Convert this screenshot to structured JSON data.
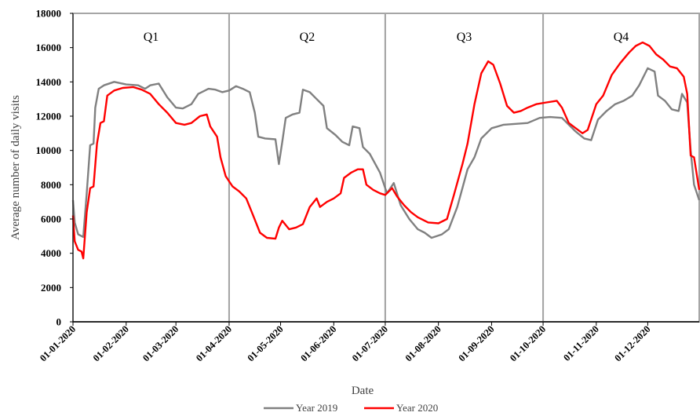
{
  "chart_data": {
    "type": "line",
    "xlabel": "Date",
    "ylabel": "Average number of daily visits",
    "ylim": [
      0,
      18000
    ],
    "xlim": [
      "01-01-2020",
      "31-12-2020"
    ],
    "grid": false,
    "legend_position": "bottom",
    "y_ticks": [
      "0",
      "2000",
      "4000",
      "6000",
      "8000",
      "10000",
      "12000",
      "14000",
      "16000",
      "18000"
    ],
    "x_ticks": [
      "01-01-2020",
      "01-02-2020",
      "01-03-2020",
      "01-04-2020",
      "01-05-2020",
      "01-06-2020",
      "01-07-2020",
      "01-08-2020",
      "01-09-2020",
      "01-10-2020",
      "01-11-2020",
      "01-12-2020"
    ],
    "regions": [
      {
        "label": "Q1",
        "start": "01-01-2020",
        "end": "01-04-2020"
      },
      {
        "label": "Q2",
        "start": "01-04-2020",
        "end": "01-07-2020"
      },
      {
        "label": "Q3",
        "start": "01-07-2020",
        "end": "01-10-2020"
      },
      {
        "label": "Q4",
        "start": "01-10-2020",
        "end": "31-12-2020"
      }
    ],
    "series": [
      {
        "name": "Year 2019",
        "color": "#808080",
        "points": [
          [
            "01-01-2020",
            7100
          ],
          [
            "02-01-2020",
            5800
          ],
          [
            "04-01-2020",
            5100
          ],
          [
            "07-01-2020",
            4950
          ],
          [
            "09-01-2020",
            7500
          ],
          [
            "11-01-2020",
            10300
          ],
          [
            "13-01-2020",
            10400
          ],
          [
            "14-01-2020",
            12500
          ],
          [
            "16-01-2020",
            13600
          ],
          [
            "19-01-2020",
            13800
          ],
          [
            "25-01-2020",
            14000
          ],
          [
            "01-02-2020",
            13850
          ],
          [
            "08-02-2020",
            13800
          ],
          [
            "12-02-2020",
            13600
          ],
          [
            "15-02-2020",
            13800
          ],
          [
            "20-02-2020",
            13900
          ],
          [
            "25-02-2020",
            13100
          ],
          [
            "01-03-2020",
            12500
          ],
          [
            "05-03-2020",
            12450
          ],
          [
            "10-03-2020",
            12700
          ],
          [
            "14-03-2020",
            13300
          ],
          [
            "20-03-2020",
            13600
          ],
          [
            "24-03-2020",
            13550
          ],
          [
            "28-03-2020",
            13400
          ],
          [
            "01-04-2020",
            13500
          ],
          [
            "05-04-2020",
            13750
          ],
          [
            "09-04-2020",
            13600
          ],
          [
            "13-04-2020",
            13400
          ],
          [
            "16-04-2020",
            12200
          ],
          [
            "18-04-2020",
            10800
          ],
          [
            "22-04-2020",
            10700
          ],
          [
            "28-04-2020",
            10650
          ],
          [
            "30-04-2020",
            9200
          ],
          [
            "02-05-2020",
            10500
          ],
          [
            "04-05-2020",
            11900
          ],
          [
            "08-05-2020",
            12100
          ],
          [
            "12-05-2020",
            12200
          ],
          [
            "14-05-2020",
            13550
          ],
          [
            "18-05-2020",
            13400
          ],
          [
            "22-05-2020",
            13000
          ],
          [
            "26-05-2020",
            12600
          ],
          [
            "28-05-2020",
            11300
          ],
          [
            "02-06-2020",
            10900
          ],
          [
            "06-06-2020",
            10500
          ],
          [
            "10-06-2020",
            10300
          ],
          [
            "12-06-2020",
            11400
          ],
          [
            "16-06-2020",
            11300
          ],
          [
            "18-06-2020",
            10200
          ],
          [
            "22-06-2020",
            9800
          ],
          [
            "28-06-2020",
            8700
          ],
          [
            "02-07-2020",
            7500
          ],
          [
            "06-07-2020",
            8100
          ],
          [
            "10-07-2020",
            6800
          ],
          [
            "15-07-2020",
            6000
          ],
          [
            "20-07-2020",
            5400
          ],
          [
            "24-07-2020",
            5200
          ],
          [
            "28-07-2020",
            4900
          ],
          [
            "03-08-2020",
            5100
          ],
          [
            "07-08-2020",
            5400
          ],
          [
            "12-08-2020",
            6700
          ],
          [
            "18-08-2020",
            8900
          ],
          [
            "22-08-2020",
            9600
          ],
          [
            "26-08-2020",
            10700
          ],
          [
            "01-09-2020",
            11300
          ],
          [
            "08-09-2020",
            11500
          ],
          [
            "15-09-2020",
            11550
          ],
          [
            "22-09-2020",
            11600
          ],
          [
            "29-09-2020",
            11900
          ],
          [
            "05-10-2020",
            11950
          ],
          [
            "12-10-2020",
            11900
          ],
          [
            "16-10-2020",
            11500
          ],
          [
            "20-10-2020",
            11100
          ],
          [
            "25-10-2020",
            10700
          ],
          [
            "29-10-2020",
            10600
          ],
          [
            "02-11-2020",
            11800
          ],
          [
            "07-11-2020",
            12300
          ],
          [
            "12-11-2020",
            12700
          ],
          [
            "17-11-2020",
            12900
          ],
          [
            "22-11-2020",
            13200
          ],
          [
            "26-11-2020",
            13800
          ],
          [
            "01-12-2020",
            14800
          ],
          [
            "05-12-2020",
            14600
          ],
          [
            "07-12-2020",
            13200
          ],
          [
            "11-12-2020",
            12900
          ],
          [
            "15-12-2020",
            12400
          ],
          [
            "19-12-2020",
            12300
          ],
          [
            "21-12-2020",
            13300
          ],
          [
            "24-12-2020",
            12800
          ],
          [
            "26-12-2020",
            10000
          ],
          [
            "28-12-2020",
            8000
          ],
          [
            "31-12-2020",
            7100
          ]
        ]
      },
      {
        "name": "Year 2020",
        "color": "#ff0000",
        "points": [
          [
            "01-01-2020",
            6200
          ],
          [
            "02-01-2020",
            4700
          ],
          [
            "04-01-2020",
            4200
          ],
          [
            "06-01-2020",
            4100
          ],
          [
            "07-01-2020",
            3700
          ],
          [
            "09-01-2020",
            6400
          ],
          [
            "11-01-2020",
            7800
          ],
          [
            "13-01-2020",
            7900
          ],
          [
            "15-01-2020",
            10400
          ],
          [
            "17-01-2020",
            11600
          ],
          [
            "19-01-2020",
            11700
          ],
          [
            "21-01-2020",
            13200
          ],
          [
            "25-01-2020",
            13500
          ],
          [
            "30-01-2020",
            13650
          ],
          [
            "05-02-2020",
            13700
          ],
          [
            "10-02-2020",
            13550
          ],
          [
            "15-02-2020",
            13300
          ],
          [
            "20-02-2020",
            12700
          ],
          [
            "25-02-2020",
            12200
          ],
          [
            "01-03-2020",
            11600
          ],
          [
            "06-03-2020",
            11500
          ],
          [
            "10-03-2020",
            11600
          ],
          [
            "15-03-2020",
            12000
          ],
          [
            "19-03-2020",
            12100
          ],
          [
            "21-03-2020",
            11400
          ],
          [
            "25-03-2020",
            10800
          ],
          [
            "27-03-2020",
            9600
          ],
          [
            "30-03-2020",
            8500
          ],
          [
            "03-04-2020",
            7900
          ],
          [
            "07-04-2020",
            7600
          ],
          [
            "11-04-2020",
            7200
          ],
          [
            "15-04-2020",
            6200
          ],
          [
            "19-04-2020",
            5200
          ],
          [
            "23-04-2020",
            4900
          ],
          [
            "28-04-2020",
            4850
          ],
          [
            "30-04-2020",
            5500
          ],
          [
            "02-05-2020",
            5900
          ],
          [
            "06-05-2020",
            5400
          ],
          [
            "10-05-2020",
            5500
          ],
          [
            "14-05-2020",
            5700
          ],
          [
            "18-05-2020",
            6700
          ],
          [
            "22-05-2020",
            7200
          ],
          [
            "24-05-2020",
            6700
          ],
          [
            "28-05-2020",
            7000
          ],
          [
            "01-06-2020",
            7200
          ],
          [
            "05-06-2020",
            7500
          ],
          [
            "07-06-2020",
            8400
          ],
          [
            "11-06-2020",
            8700
          ],
          [
            "15-06-2020",
            8900
          ],
          [
            "18-06-2020",
            8900
          ],
          [
            "20-06-2020",
            8000
          ],
          [
            "24-06-2020",
            7700
          ],
          [
            "28-06-2020",
            7500
          ],
          [
            "01-07-2020",
            7400
          ],
          [
            "05-07-2020",
            7800
          ],
          [
            "08-07-2020",
            7300
          ],
          [
            "12-07-2020",
            6800
          ],
          [
            "16-07-2020",
            6400
          ],
          [
            "20-07-2020",
            6100
          ],
          [
            "26-07-2020",
            5800
          ],
          [
            "01-08-2020",
            5750
          ],
          [
            "06-08-2020",
            6000
          ],
          [
            "10-08-2020",
            7400
          ],
          [
            "15-08-2020",
            9200
          ],
          [
            "18-08-2020",
            10400
          ],
          [
            "22-08-2020",
            12700
          ],
          [
            "26-08-2020",
            14500
          ],
          [
            "30-08-2020",
            15200
          ],
          [
            "02-09-2020",
            15000
          ],
          [
            "06-09-2020",
            13900
          ],
          [
            "10-09-2020",
            12600
          ],
          [
            "14-09-2020",
            12200
          ],
          [
            "18-09-2020",
            12300
          ],
          [
            "22-09-2020",
            12500
          ],
          [
            "27-09-2020",
            12700
          ],
          [
            "03-10-2020",
            12800
          ],
          [
            "09-10-2020",
            12900
          ],
          [
            "12-10-2020",
            12500
          ],
          [
            "16-10-2020",
            11600
          ],
          [
            "20-10-2020",
            11300
          ],
          [
            "24-10-2020",
            11000
          ],
          [
            "27-10-2020",
            11200
          ],
          [
            "01-11-2020",
            12700
          ],
          [
            "05-11-2020",
            13200
          ],
          [
            "10-11-2020",
            14400
          ],
          [
            "15-11-2020",
            15100
          ],
          [
            "20-11-2020",
            15700
          ],
          [
            "24-11-2020",
            16100
          ],
          [
            "28-11-2020",
            16300
          ],
          [
            "02-12-2020",
            16100
          ],
          [
            "06-12-2020",
            15600
          ],
          [
            "10-12-2020",
            15300
          ],
          [
            "14-12-2020",
            14900
          ],
          [
            "18-12-2020",
            14800
          ],
          [
            "22-12-2020",
            14300
          ],
          [
            "24-12-2020",
            13300
          ],
          [
            "26-12-2020",
            9700
          ],
          [
            "28-12-2020",
            9600
          ],
          [
            "31-12-2020",
            7700
          ]
        ]
      }
    ]
  }
}
